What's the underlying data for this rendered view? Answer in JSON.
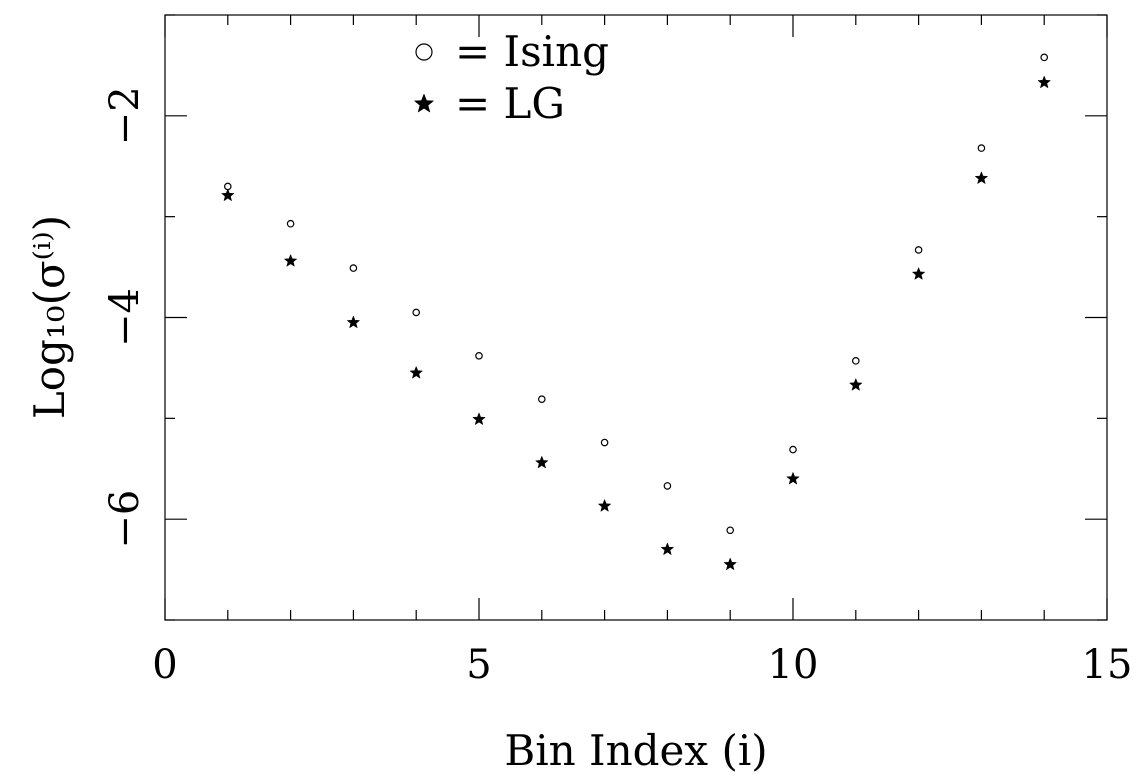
{
  "chart_data": {
    "type": "scatter",
    "title": "",
    "xlabel": "Bin Index (i)",
    "ylabel": "Log₁₀(σ⁽ⁱ⁾)",
    "xlim": [
      0,
      15
    ],
    "ylim": [
      -7,
      -1
    ],
    "x_ticks": [
      0,
      5,
      10,
      15
    ],
    "y_ticks": [
      -6,
      -4,
      -2
    ],
    "x_tick_labels": [
      "0",
      "5",
      "10",
      "15"
    ],
    "y_tick_labels": [
      "−6",
      "−4",
      "−2"
    ],
    "grid": false,
    "legend_position": "top-left",
    "series": [
      {
        "name": "Ising",
        "legend_label": "= Ising",
        "marker": "open-circle",
        "x": [
          1,
          2,
          3,
          4,
          5,
          6,
          7,
          8,
          9,
          10,
          11,
          12,
          13,
          14
        ],
        "y": [
          -2.7,
          -3.07,
          -3.51,
          -3.95,
          -4.38,
          -4.81,
          -5.24,
          -5.67,
          -6.11,
          -5.31,
          -4.43,
          -3.33,
          -2.32,
          -1.42
        ]
      },
      {
        "name": "LG",
        "legend_label": "= LG",
        "marker": "filled-star",
        "x": [
          1,
          2,
          3,
          4,
          5,
          6,
          7,
          8,
          9,
          10,
          11,
          12,
          13,
          14
        ],
        "y": [
          -2.79,
          -3.44,
          -4.05,
          -4.55,
          -5.01,
          -5.44,
          -5.87,
          -6.3,
          -6.45,
          -5.6,
          -4.67,
          -3.57,
          -2.62,
          -1.67
        ]
      }
    ]
  }
}
